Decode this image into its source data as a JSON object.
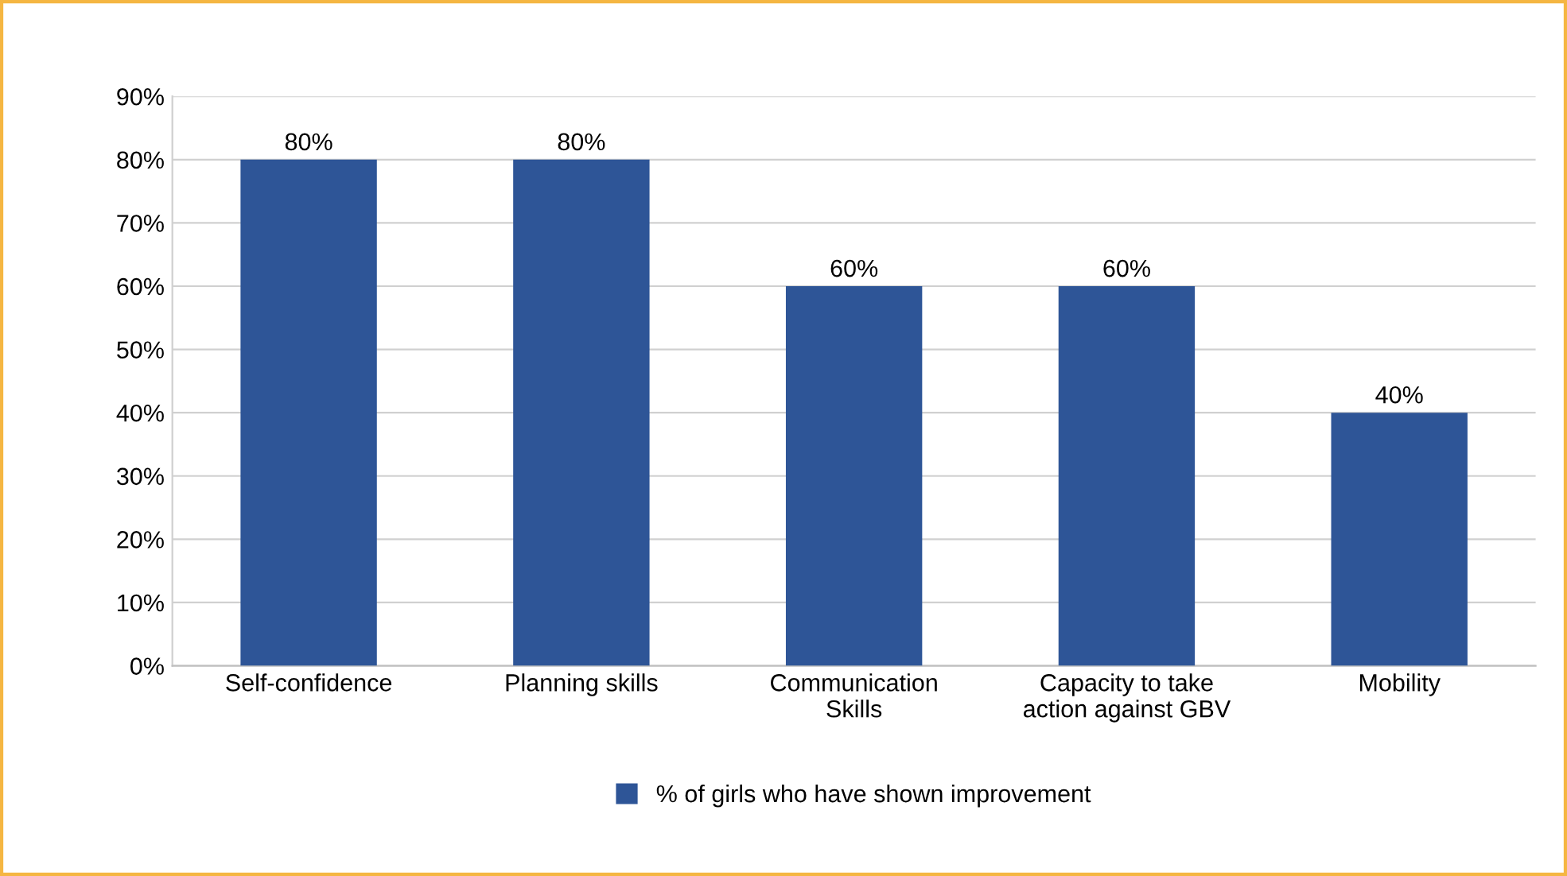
{
  "chart_data": {
    "type": "bar",
    "categories": [
      "Self-confidence",
      "Planning skills",
      "Communication\nSkills",
      "Capacity to take\naction against GBV",
      "Mobility"
    ],
    "series": [
      {
        "name": "% of girls who have shown improvement",
        "color": "#2e5597",
        "values": [
          80,
          80,
          60,
          60,
          40
        ]
      }
    ],
    "value_labels": [
      "80%",
      "80%",
      "60%",
      "60%",
      "40%"
    ],
    "ylim": [
      0,
      90
    ],
    "yticks": [
      {
        "value": 0,
        "label": "0%"
      },
      {
        "value": 10,
        "label": "10%"
      },
      {
        "value": 20,
        "label": "20%"
      },
      {
        "value": 30,
        "label": "30%"
      },
      {
        "value": 40,
        "label": "40%"
      },
      {
        "value": 50,
        "label": "50%"
      },
      {
        "value": 60,
        "label": "60%"
      },
      {
        "value": 70,
        "label": "70%"
      },
      {
        "value": 80,
        "label": "80%"
      },
      {
        "value": 90,
        "label": "90%"
      }
    ],
    "grid": "y",
    "legend": "bottom"
  }
}
